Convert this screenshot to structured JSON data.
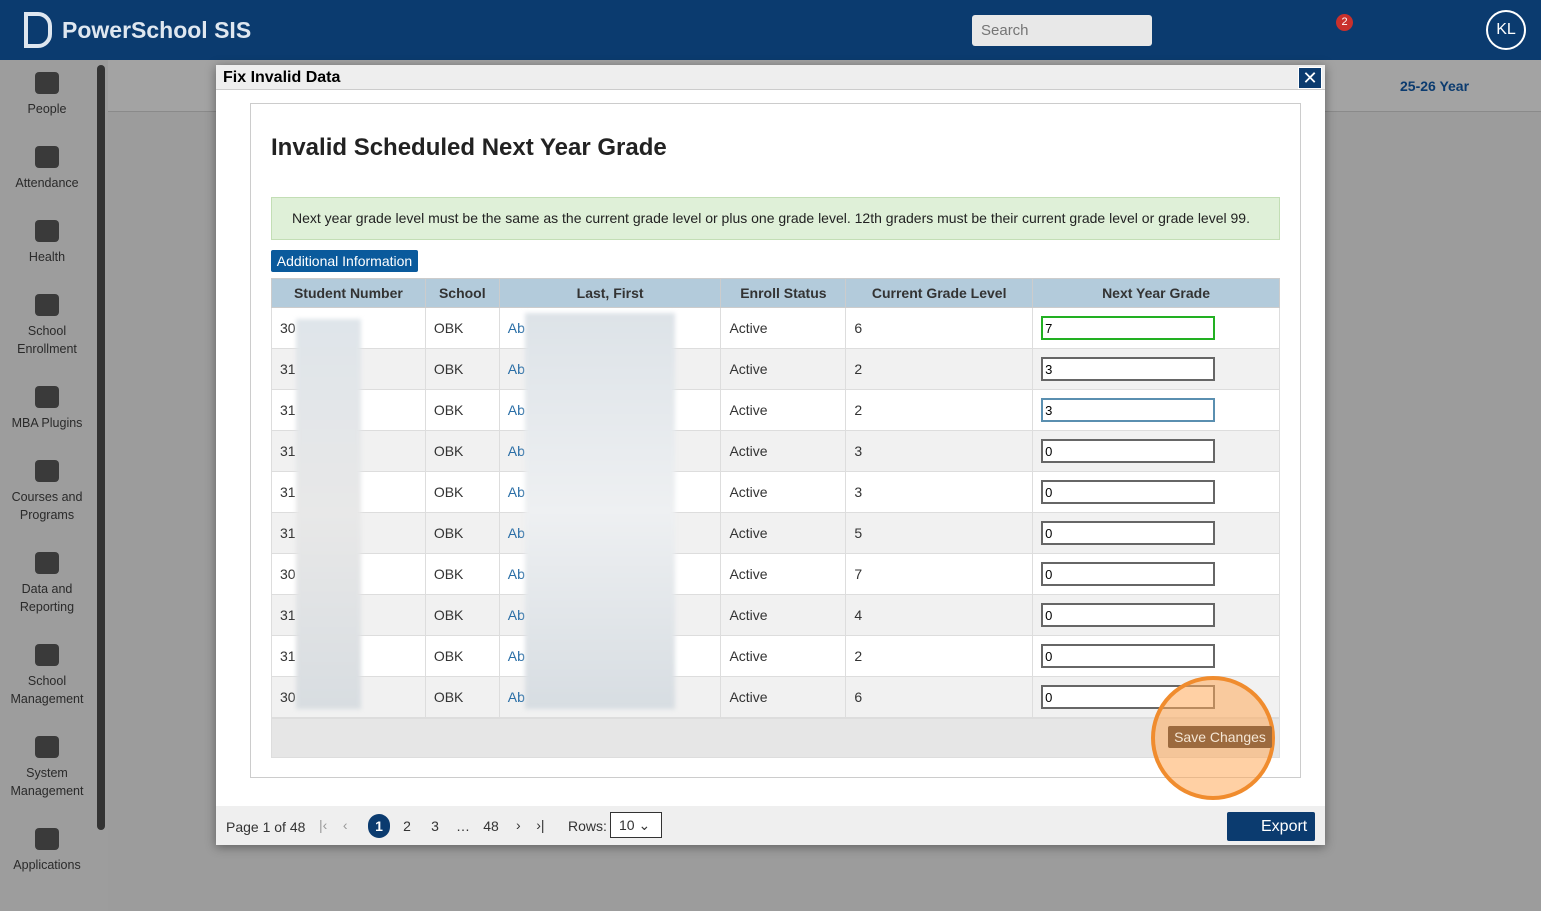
{
  "header": {
    "app_name": "PowerSchool SIS",
    "search_placeholder": "Search",
    "alert_count": "2",
    "user_initials": "KL"
  },
  "sidebar": {
    "items": [
      "People",
      "Attendance",
      "Health",
      "School Enrollment",
      "MBA Plugins",
      "Courses and Programs",
      "Data and Reporting",
      "School Management",
      "System Management",
      "Applications"
    ]
  },
  "year_selector": "25-26 Year",
  "dialog": {
    "title": "Fix Invalid Data",
    "heading": "Invalid Scheduled Next Year Grade",
    "message": "Next year grade level must be the same as the current grade level or plus one grade level. 12th graders must be their current grade level or grade level 99.",
    "info_button": "Additional Information",
    "table": {
      "columns": [
        "Student Number",
        "School",
        "Last, First",
        "Enroll Status",
        "Current Grade Level",
        "Next Year Grade"
      ],
      "rows": [
        [
          "30",
          "OBK",
          "Ab",
          "Active",
          "6",
          "7"
        ],
        [
          "31",
          "OBK",
          "Ab",
          "Active",
          "2",
          "3"
        ],
        [
          "31",
          "OBK",
          "Ab",
          "Active",
          "2",
          "3"
        ],
        [
          "31",
          "OBK",
          "Ab",
          "Active",
          "3",
          "0"
        ],
        [
          "31",
          "OBK",
          "Ab",
          "Active",
          "3",
          "0"
        ],
        [
          "31",
          "OBK",
          "Ab",
          "Active",
          "5",
          "0"
        ],
        [
          "30",
          "OBK",
          "Ab",
          "Active",
          "7",
          "0"
        ],
        [
          "31",
          "OBK",
          "Ab",
          "Active",
          "4",
          "0"
        ],
        [
          "31",
          "OBK",
          "Ab",
          "Active",
          "2",
          "0"
        ],
        [
          "30",
          "OBK",
          "Ab",
          "Active",
          "6",
          "0"
        ]
      ]
    },
    "save_button": "Save Changes",
    "pagination": {
      "summary": "Page 1 of 48",
      "pages": [
        "1",
        "2",
        "3",
        "…",
        "48"
      ],
      "rows_label": "Rows:",
      "rows_value": "10"
    },
    "export_button": "Export"
  }
}
